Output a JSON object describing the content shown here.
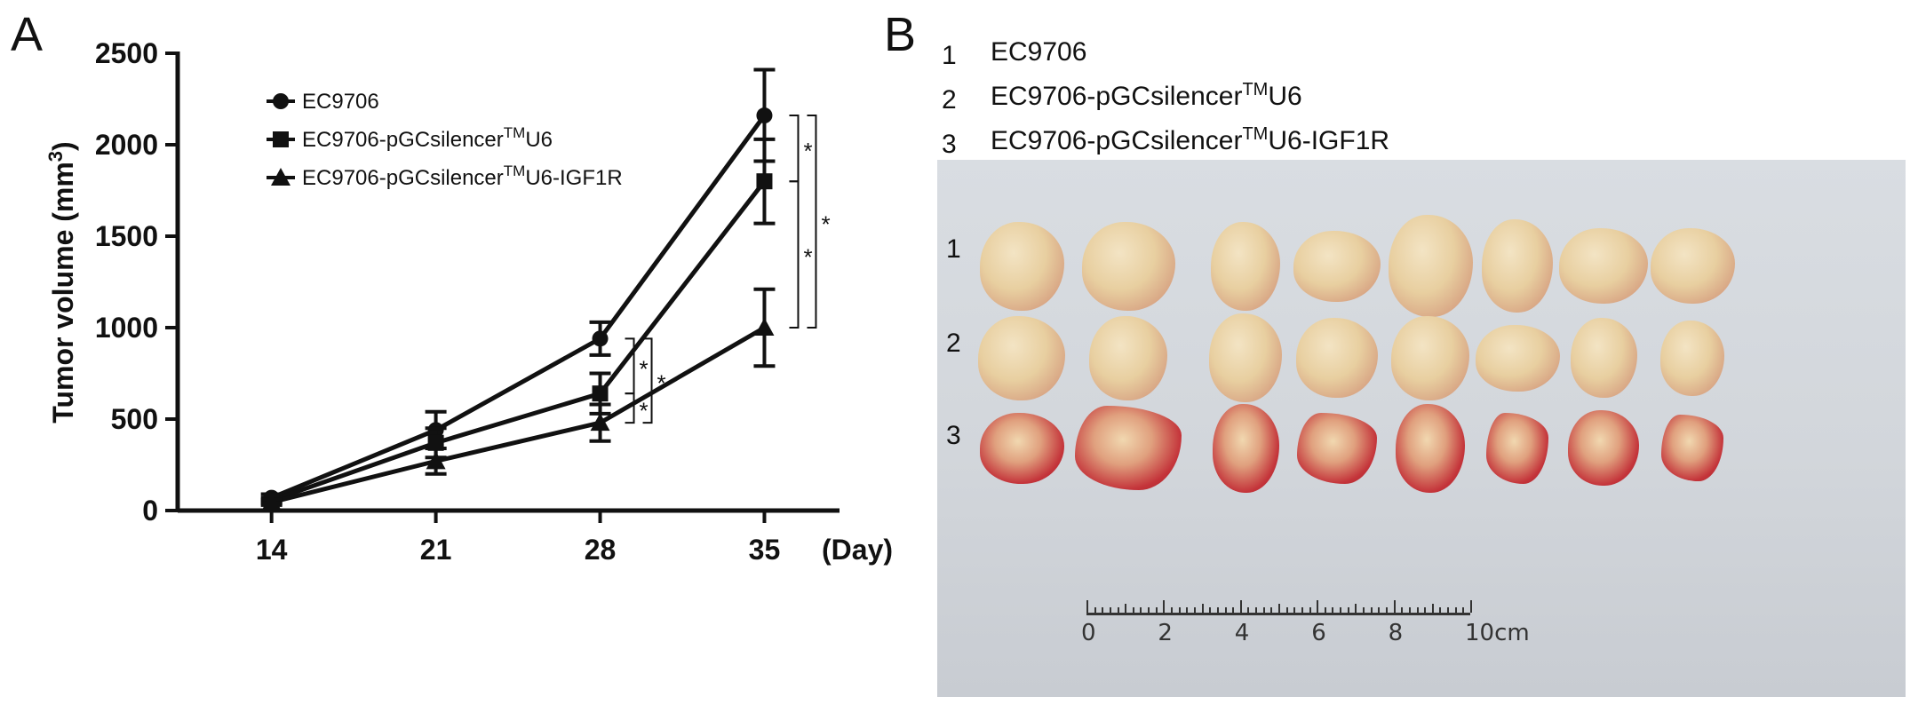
{
  "panel_a": {
    "letter": "A"
  },
  "panel_b": {
    "letter": "B",
    "groups": [
      {
        "num": "1",
        "base": "EC9706",
        "sup": "",
        "tail": ""
      },
      {
        "num": "2",
        "base": "EC9706-pGCsilencer",
        "sup": "TM",
        "tail": "U6"
      },
      {
        "num": "3",
        "base": "EC9706-pGCsilencer",
        "sup": "TM",
        "tail": "U6-IGF1R"
      }
    ],
    "photo": {
      "row_labels": [
        "1",
        "2",
        "3"
      ],
      "tumors_per_row": 8,
      "ruler_labels": [
        "0",
        "2",
        "4",
        "6",
        "8",
        "10cm"
      ]
    }
  },
  "chart_data": {
    "type": "line",
    "x": [
      14,
      21,
      28,
      35
    ],
    "xlabel_unit": "(Day)",
    "ylabel": "Tumor volume (mm3)",
    "ylabel_main": "Tumor volume (mm",
    "ylabel_sup": "3",
    "ylabel_close": ")",
    "ylim": [
      0,
      2500
    ],
    "yticks": [
      0,
      500,
      1000,
      1500,
      2000,
      2500
    ],
    "series": [
      {
        "name": "EC9706",
        "legend_base": "EC9706",
        "legend_sup": "",
        "legend_tail": "",
        "marker": "circle",
        "values": [
          70,
          440,
          940,
          2160
        ],
        "errors": [
          20,
          100,
          90,
          250
        ]
      },
      {
        "name": "EC9706-pGCsilencerTMU6",
        "legend_base": "EC9706-pGCsilencer",
        "legend_sup": "TM",
        "legend_tail": "U6",
        "marker": "square",
        "values": [
          55,
          370,
          640,
          1800
        ],
        "errors": [
          15,
          80,
          110,
          230
        ]
      },
      {
        "name": "EC9706-pGCsilencerTMU6-IGF1R",
        "legend_base": "EC9706-pGCsilencer",
        "legend_sup": "TM",
        "legend_tail": "U6-IGF1R",
        "marker": "triangle",
        "values": [
          45,
          270,
          480,
          1000
        ],
        "errors": [
          15,
          70,
          100,
          210
        ]
      }
    ],
    "significance": [
      {
        "day": 28,
        "from": 0,
        "to": 1,
        "label": "*",
        "offset": 1
      },
      {
        "day": 28,
        "from": 1,
        "to": 2,
        "label": "*",
        "offset": 1
      },
      {
        "day": 28,
        "from": 0,
        "to": 2,
        "label": "*",
        "offset": 2
      },
      {
        "day": 35,
        "from": 0,
        "to": 1,
        "label": "*",
        "offset": 1
      },
      {
        "day": 35,
        "from": 1,
        "to": 2,
        "label": "*",
        "offset": 1
      },
      {
        "day": 35,
        "from": 0,
        "to": 2,
        "label": "*",
        "offset": 2
      }
    ]
  }
}
